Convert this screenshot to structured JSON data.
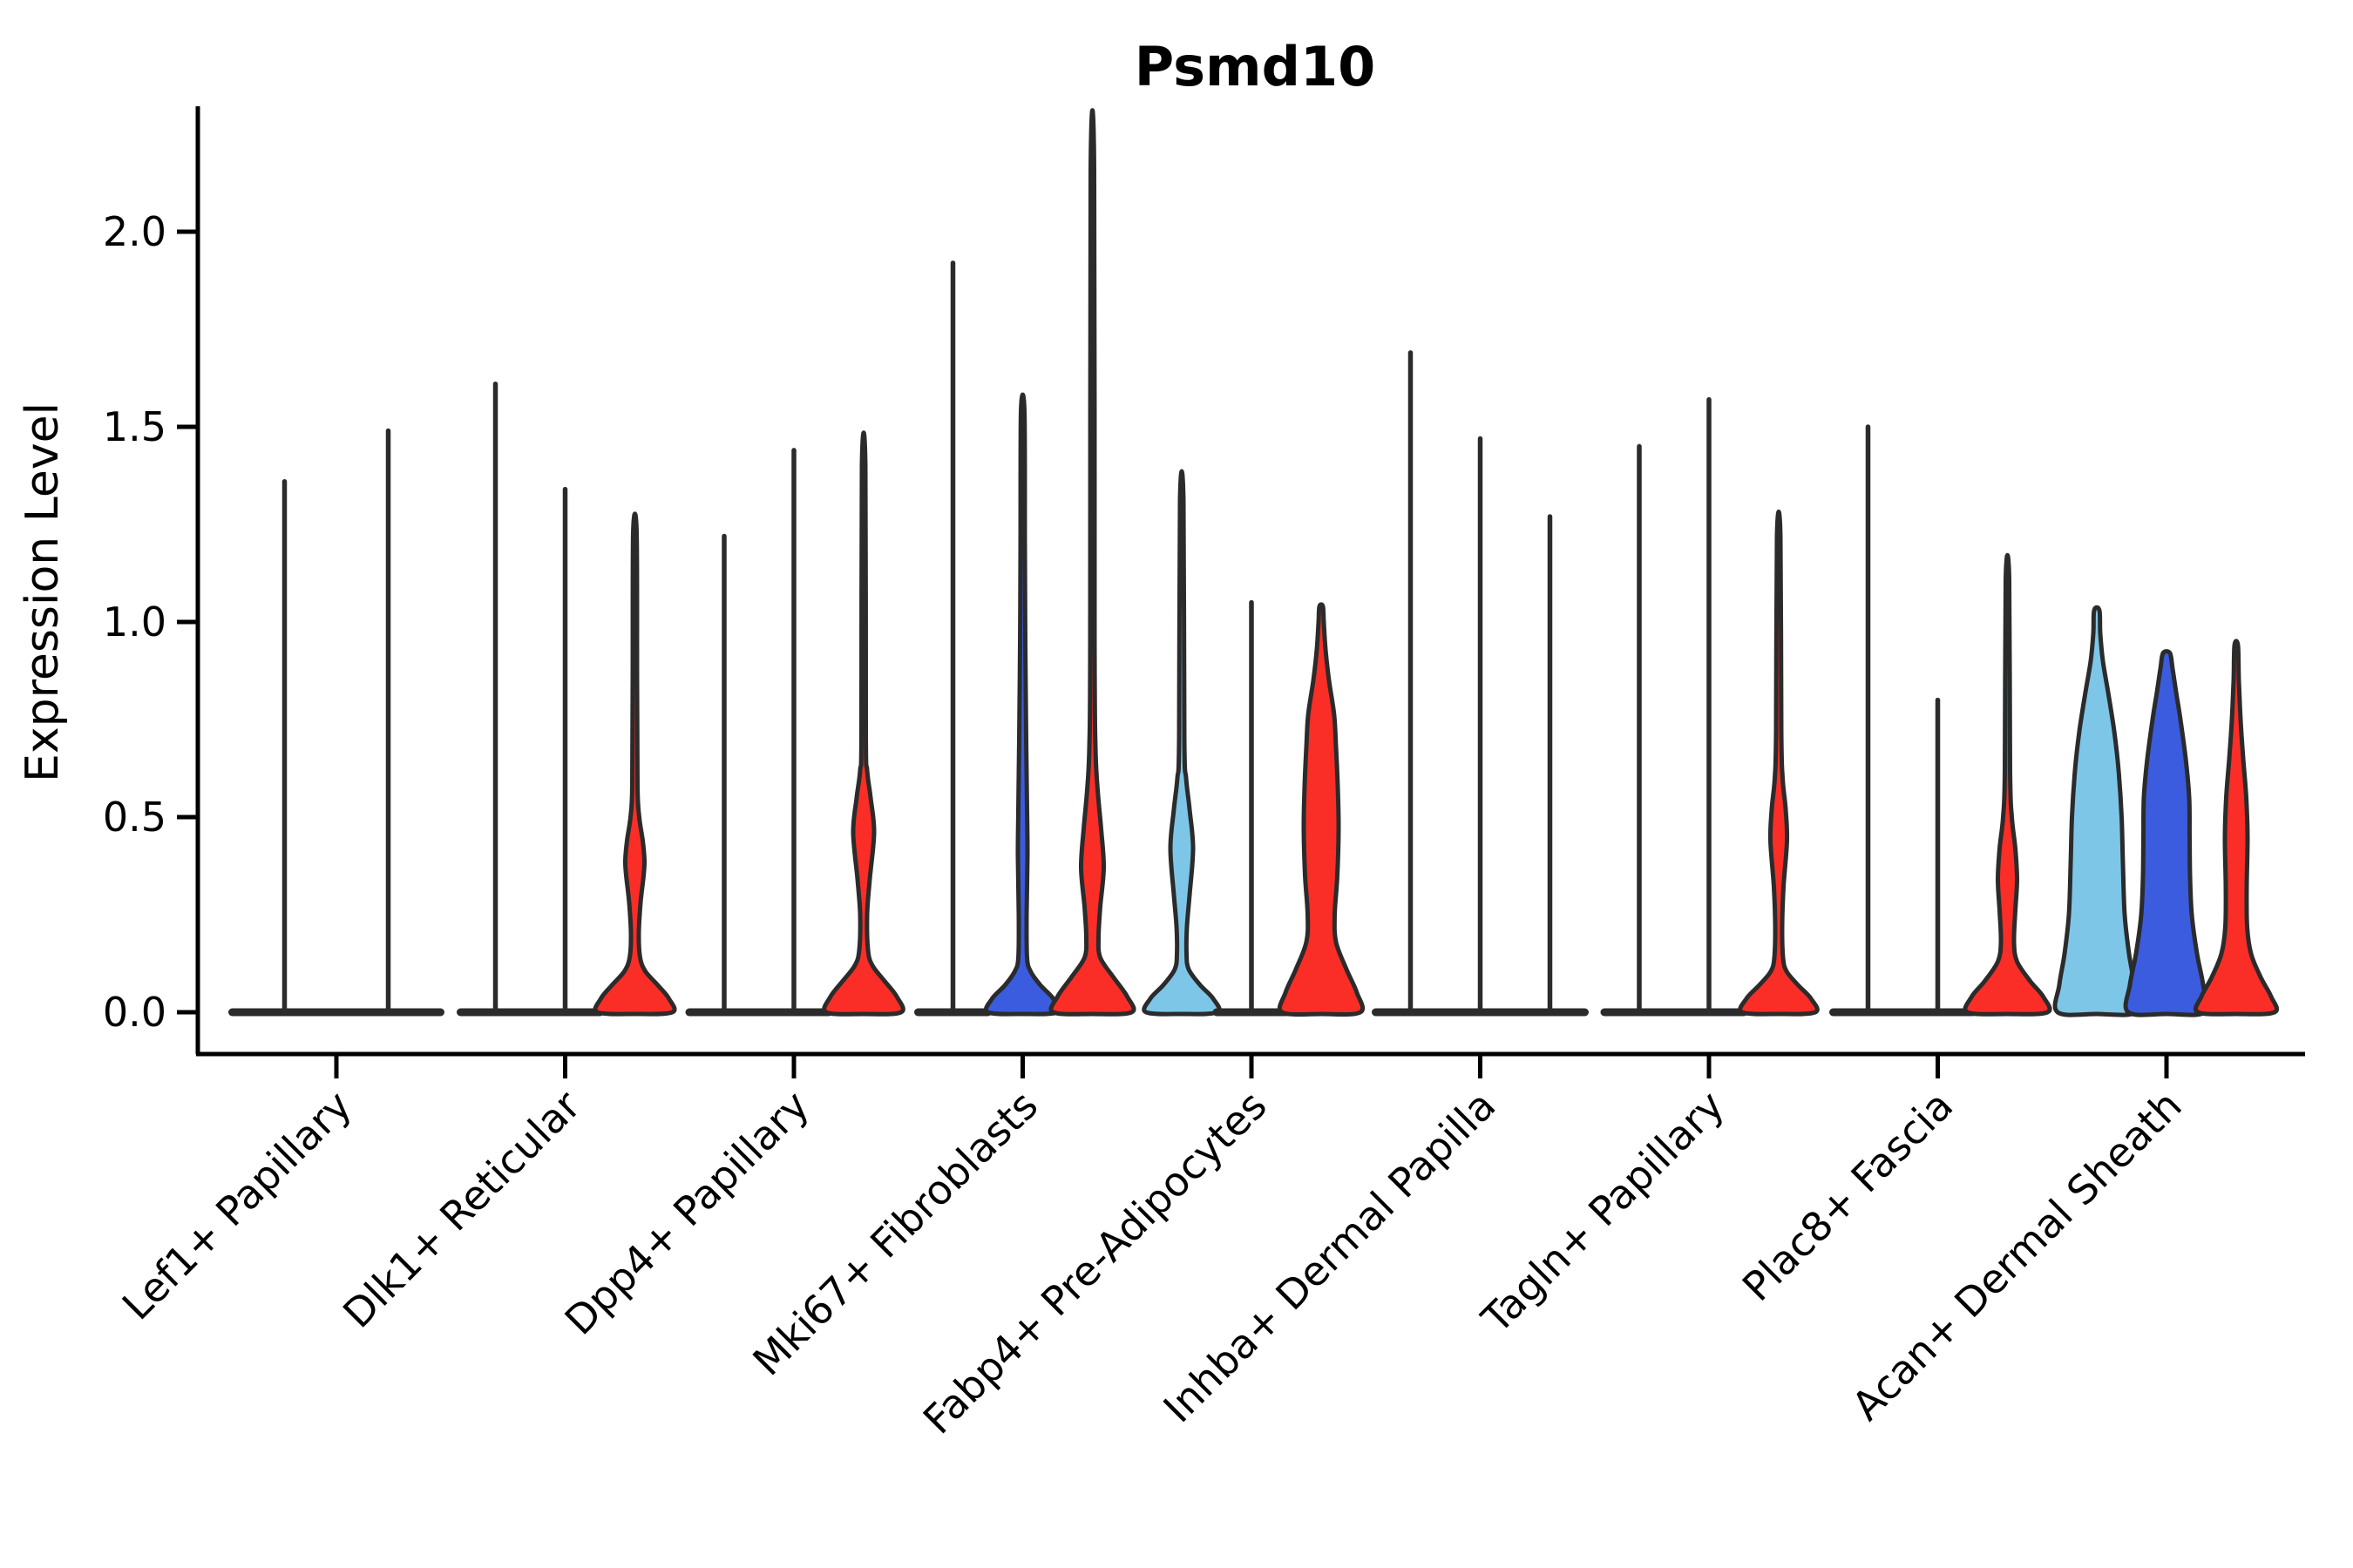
{
  "title": "Psmd10",
  "y_axis": {
    "label": "Expression Level",
    "tick_labels": [
      "0.0",
      "0.5",
      "1.0",
      "1.5",
      "2.0"
    ],
    "tick_values": [
      0.0,
      0.5,
      1.0,
      1.5,
      2.0
    ]
  },
  "x_axis": {
    "categories": [
      "Lef1+ Papillary",
      "Dlk1+ Reticular",
      "Dpp4+ Papillary",
      "Mki67+ Fibroblasts",
      "Fabp4+ Pre-Adipocytes",
      "Inhba+ Dermal Papilla",
      "Tagln+ Papillary",
      "Plac8+ Fascia",
      "Acan+ Dermal Sheath"
    ]
  },
  "colors": {
    "skyblue": "#7DC6E8",
    "blue": "#3B5CDE",
    "red": "#FA2E27",
    "outline": "#2B2B2B",
    "axis": "#000000",
    "text": "#000000"
  },
  "chart_data": {
    "type": "violin",
    "title": "Psmd10",
    "ylabel": "Expression Level",
    "ylim": [
      -0.11,
      2.33
    ],
    "yticks": [
      0.0,
      0.5,
      1.0,
      1.5,
      2.0
    ],
    "grid": false,
    "legend": "none",
    "categories": [
      "Lef1+ Papillary",
      "Dlk1+ Reticular",
      "Dpp4+ Papillary",
      "Mki67+ Fibroblasts",
      "Fabp4+ Pre-Adipocytes",
      "Inhba+ Dermal Papilla",
      "Tagln+ Papillary",
      "Plac8+ Fascia",
      "Acan+ Dermal Sheath"
    ],
    "description": "Violin plot of Psmd10 expression per fibroblast subtype; up to three condition violins per category (skyblue, blue, red). Most distributions collapse to zero with a thin spike to the max expression value. 'profile' lists [expression_value, half_width_px] density control points.",
    "groups": [
      {
        "category": "Lef1+ Papillary",
        "violins": [
          {
            "fill": "none",
            "max": 1.36
          },
          {
            "fill": "none",
            "max": 1.49
          }
        ]
      },
      {
        "category": "Dlk1+ Reticular",
        "violins": [
          {
            "fill": "none",
            "max": 1.61
          },
          {
            "fill": "none",
            "max": 1.34
          },
          {
            "fill": "red",
            "max": 1.23,
            "bulge_center": 0.39,
            "profile": [
              [
                0,
                43
              ],
              [
                0.035,
                39
              ],
              [
                0.07,
                26
              ],
              [
                0.105,
                12
              ],
              [
                0.14,
                6
              ],
              [
                0.2,
                4.5
              ],
              [
                0.28,
                6.5
              ],
              [
                0.35,
                10
              ],
              [
                0.39,
                11
              ],
              [
                0.44,
                9
              ],
              [
                0.5,
                5
              ],
              [
                0.58,
                3
              ],
              [
                0.85,
                2.5
              ],
              [
                1.23,
                2
              ]
            ]
          }
        ]
      },
      {
        "category": "Dpp4+ Papillary",
        "violins": [
          {
            "fill": "none",
            "max": 1.22
          },
          {
            "fill": "none",
            "max": 1.44
          },
          {
            "fill": "red",
            "max": 1.4,
            "bulge_center": 0.46,
            "profile": [
              [
                0,
                43
              ],
              [
                0.04,
                38
              ],
              [
                0.08,
                24
              ],
              [
                0.12,
                10
              ],
              [
                0.16,
                5
              ],
              [
                0.25,
                4
              ],
              [
                0.34,
                7
              ],
              [
                0.46,
                12
              ],
              [
                0.55,
                8
              ],
              [
                0.62,
                4
              ],
              [
                0.72,
                2.5
              ],
              [
                1.4,
                2
              ]
            ]
          }
        ]
      },
      {
        "category": "Mki67+ Fibroblasts",
        "violins": [
          {
            "fill": "none",
            "max": 1.92
          },
          {
            "fill": "blue",
            "max": 1.54,
            "bulge_center": 0.4,
            "profile": [
              [
                0,
                40
              ],
              [
                0.035,
                35
              ],
              [
                0.07,
                20
              ],
              [
                0.105,
                9
              ],
              [
                0.14,
                5
              ],
              [
                0.25,
                4.5
              ],
              [
                0.4,
                5.5
              ],
              [
                0.52,
                5
              ],
              [
                0.7,
                4
              ],
              [
                0.95,
                3
              ],
              [
                1.2,
                2.5
              ],
              [
                1.54,
                2
              ]
            ]
          },
          {
            "fill": "red",
            "max": 2.16,
            "bulge_center": 0.37,
            "profile": [
              [
                0,
                45
              ],
              [
                0.04,
                40
              ],
              [
                0.09,
                24
              ],
              [
                0.14,
                9
              ],
              [
                0.19,
                7
              ],
              [
                0.27,
                9
              ],
              [
                0.37,
                13
              ],
              [
                0.47,
                10
              ],
              [
                0.57,
                6
              ],
              [
                0.68,
                3.5
              ],
              [
                0.95,
                2.5
              ],
              [
                2.16,
                2
              ]
            ]
          }
        ]
      },
      {
        "category": "Fabp4+ Pre-Adipocytes",
        "violins": [
          {
            "fill": "skyblue",
            "max": 1.31,
            "bulge_center": 0.42,
            "profile": [
              [
                0,
                41
              ],
              [
                0.035,
                36
              ],
              [
                0.07,
                21
              ],
              [
                0.11,
                8
              ],
              [
                0.15,
                5.5
              ],
              [
                0.22,
                6
              ],
              [
                0.3,
                9
              ],
              [
                0.42,
                13
              ],
              [
                0.52,
                9
              ],
              [
                0.6,
                5
              ],
              [
                0.7,
                3
              ],
              [
                1.31,
                2
              ]
            ]
          },
          {
            "fill": "none",
            "max": 1.05
          },
          {
            "fill": "red",
            "max": 1.04,
            "bulge_center": 0.47,
            "profile": [
              [
                0,
                45
              ],
              [
                0.05,
                41
              ],
              [
                0.11,
                29
              ],
              [
                0.18,
                17
              ],
              [
                0.25,
                15.5
              ],
              [
                0.35,
                18.5
              ],
              [
                0.47,
                20
              ],
              [
                0.58,
                19
              ],
              [
                0.68,
                17
              ],
              [
                0.76,
                15
              ],
              [
                0.85,
                9
              ],
              [
                0.93,
                5
              ],
              [
                1.0,
                3
              ],
              [
                1.04,
                2
              ]
            ]
          }
        ]
      },
      {
        "category": "Inhba+ Dermal Papilla",
        "violins": [
          {
            "fill": "none",
            "max": 1.69
          },
          {
            "fill": "none",
            "max": 1.47
          },
          {
            "fill": "none",
            "max": 1.27
          }
        ]
      },
      {
        "category": "Tagln+ Papillary",
        "violins": [
          {
            "fill": "none",
            "max": 1.45
          },
          {
            "fill": "none",
            "max": 1.57
          },
          {
            "fill": "red",
            "max": 1.22,
            "bulge_center": 0.48,
            "profile": [
              [
                0,
                42
              ],
              [
                0.035,
                37
              ],
              [
                0.07,
                22
              ],
              [
                0.105,
                9
              ],
              [
                0.14,
                5
              ],
              [
                0.22,
                4
              ],
              [
                0.32,
                5.5
              ],
              [
                0.44,
                9.5
              ],
              [
                0.52,
                8
              ],
              [
                0.6,
                4.5
              ],
              [
                0.72,
                3
              ],
              [
                1.22,
                2
              ]
            ]
          }
        ]
      },
      {
        "category": "Plac8+ Fascia",
        "violins": [
          {
            "fill": "none",
            "max": 1.5
          },
          {
            "fill": "none",
            "max": 0.8
          },
          {
            "fill": "red",
            "max": 1.11,
            "bulge_center": 0.35,
            "profile": [
              [
                0,
                46
              ],
              [
                0.04,
                41
              ],
              [
                0.08,
                26
              ],
              [
                0.13,
                11
              ],
              [
                0.18,
                7.5
              ],
              [
                0.26,
                9
              ],
              [
                0.34,
                11
              ],
              [
                0.42,
                9
              ],
              [
                0.5,
                5
              ],
              [
                0.62,
                3
              ],
              [
                1.11,
                2
              ]
            ]
          }
        ]
      },
      {
        "category": "Acan+ Dermal Sheath",
        "violins": [
          {
            "fill": "skyblue",
            "max": 1.03,
            "bulge_center": 0.4,
            "profile": [
              [
                0,
                45
              ],
              [
                0.07,
                43
              ],
              [
                0.15,
                37
              ],
              [
                0.25,
                32
              ],
              [
                0.38,
                30
              ],
              [
                0.5,
                28.5
              ],
              [
                0.62,
                25
              ],
              [
                0.72,
                20
              ],
              [
                0.82,
                13
              ],
              [
                0.9,
                7
              ],
              [
                0.97,
                4
              ],
              [
                1.03,
                3
              ]
            ]
          },
          {
            "fill": "blue",
            "max": 0.92,
            "bulge_center": 0.45,
            "profile": [
              [
                0,
                44
              ],
              [
                0.07,
                42
              ],
              [
                0.15,
                35
              ],
              [
                0.25,
                29
              ],
              [
                0.35,
                27
              ],
              [
                0.45,
                26.5
              ],
              [
                0.55,
                26
              ],
              [
                0.65,
                22
              ],
              [
                0.75,
                16
              ],
              [
                0.82,
                11
              ],
              [
                0.88,
                7
              ],
              [
                0.92,
                4
              ]
            ]
          },
          {
            "fill": "red",
            "max": 0.94,
            "bulge_center": 0.45,
            "profile": [
              [
                0,
                44
              ],
              [
                0.04,
                40
              ],
              [
                0.09,
                28
              ],
              [
                0.15,
                17
              ],
              [
                0.22,
                12.5
              ],
              [
                0.32,
                12
              ],
              [
                0.45,
                13
              ],
              [
                0.55,
                11.5
              ],
              [
                0.65,
                8
              ],
              [
                0.75,
                5
              ],
              [
                0.85,
                3
              ],
              [
                0.94,
                2
              ]
            ]
          }
        ]
      }
    ]
  }
}
